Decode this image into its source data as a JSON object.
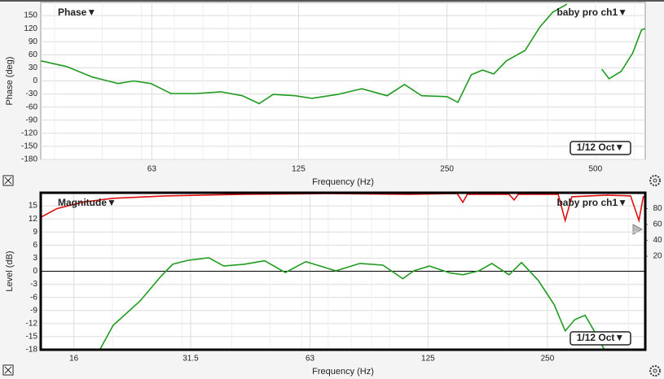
{
  "chart_data": [
    {
      "type": "line",
      "title": "Phase▼",
      "smoothing": "1/12 Oct▼",
      "x_label": "Frequency (Hz)",
      "y_label": "Phase (deg)",
      "xscale": "log",
      "xlim": [
        37.5,
        631
      ],
      "xticks": [
        63,
        125,
        250,
        500
      ],
      "ylim": [
        -180,
        180
      ],
      "yticks": [
        -180,
        -150,
        -120,
        -90,
        -60,
        -30,
        0,
        30,
        60,
        90,
        120,
        150
      ],
      "grid": true,
      "zero_line": false,
      "series": [
        {
          "name": "baby pro ch1▼",
          "color": "#1f9b1f",
          "x": [
            37.5,
            42.3,
            47.7,
            53.8,
            57.9,
            62.7,
            68.9,
            77.4,
            87,
            96.1,
            104,
            111,
            123,
            133,
            150,
            168,
            189,
            205,
            222,
            250,
            263,
            280,
            295,
            311,
            330,
            360,
            386,
            410,
            438,
            470,
            515,
            533,
            564,
            595,
            620,
            631
          ],
          "values": [
            46,
            33,
            9,
            -6,
            0,
            -6,
            -29,
            -29,
            -25,
            -34,
            -52,
            -31,
            -34,
            -40,
            -31,
            -18,
            -34,
            -8,
            -34,
            -36,
            -49,
            14,
            25,
            16,
            46,
            70,
            124,
            158,
            176,
            null,
            27,
            5,
            22,
            64,
            117,
            120
          ]
        }
      ]
    },
    {
      "type": "line",
      "title": "Magnitude▼",
      "smoothing": "1/12 Oct▼",
      "x_label": "Frequency (Hz)",
      "y_label": "Level (dB)",
      "xscale": "log",
      "xlim": [
        13.2,
        441
      ],
      "xticks": [
        16,
        31.5,
        63,
        125,
        250
      ],
      "ylim": [
        -18,
        18
      ],
      "yticks": [
        -18,
        -15,
        -12,
        -9,
        -6,
        -3,
        0,
        3,
        6,
        9,
        12,
        15
      ],
      "y2lim": [
        -98,
        100
      ],
      "y2ticks": [
        20,
        40,
        60,
        80
      ],
      "grid": true,
      "zero_line": true,
      "series": [
        {
          "name": "baby pro ch1▼",
          "color": "#1f9b1f",
          "x": [
            18.6,
            20.1,
            23.5,
            26.5,
            28.4,
            31.0,
            35.0,
            38.2,
            43.0,
            48.4,
            54.6,
            61.5,
            73.2,
            84.2,
            96.2,
            108,
            115,
            126,
            142,
            153,
            168,
            181,
            200,
            215,
            237,
            260,
            277,
            293,
            311,
            326,
            348
          ],
          "values": [
            -18,
            -12.4,
            -6.8,
            -1.2,
            1.6,
            2.5,
            3.1,
            1.2,
            1.6,
            2.4,
            -0.3,
            2.2,
            0.1,
            1.8,
            1.4,
            -1.7,
            0.1,
            1.2,
            -0.4,
            -0.8,
            0.1,
            1.8,
            -0.8,
            2.0,
            -2.1,
            -7.7,
            -13.7,
            -11.1,
            -10.1,
            -13.3,
            -18
          ]
        },
        {
          "color": "#e01010",
          "axis": "y2",
          "x": [
            13.2,
            14.5,
            16.8,
            20.1,
            27.1,
            43.0,
            69.4,
            112,
            148,
            153,
            157,
            200,
            206,
            211,
            266,
            277,
            288,
            353,
            405,
            425,
            436,
            441
          ],
          "values": [
            69,
            80,
            88,
            93,
            96,
            98,
            99,
            98,
            99,
            88,
            98,
            98,
            91,
            98,
            98,
            65,
            95,
            97,
            96,
            65,
            95,
            95
          ]
        }
      ]
    }
  ]
}
